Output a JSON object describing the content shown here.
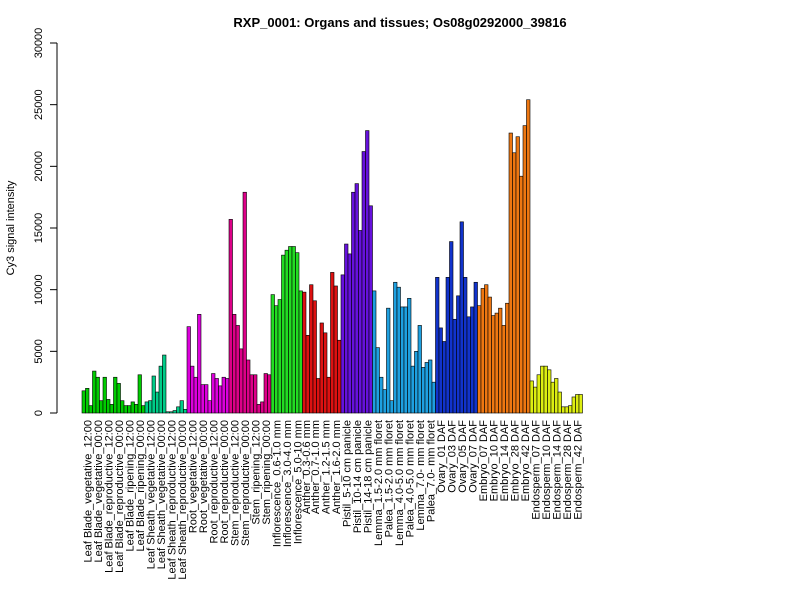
{
  "chart_data": {
    "type": "bar",
    "title": "RXP_0001: Organs and tissues; Os08g0292000_39816",
    "ylabel": "Cy3 signal intensity",
    "xlabel": "",
    "ylim": [
      0,
      30000
    ],
    "yticks": [
      0,
      5000,
      10000,
      15000,
      20000,
      25000,
      30000
    ],
    "grid": false,
    "legend": "none",
    "groups": [
      {
        "label": "Leaf Blade_vegetative_12:00",
        "color": "#00cc00",
        "values": [
          1800,
          2000,
          600
        ]
      },
      {
        "label": "Leaf Blade_vegetative_00:00",
        "color": "#00cc00",
        "values": [
          3400,
          2900,
          1000
        ]
      },
      {
        "label": "Leaf Blade_reproductive_12:00",
        "color": "#00cc00",
        "values": [
          2900,
          1100,
          700
        ]
      },
      {
        "label": "Leaf Blade_reproductive_00:00",
        "color": "#00cc00",
        "values": [
          2900,
          2400,
          1000
        ]
      },
      {
        "label": "Leaf Blade_ripening_12:00",
        "color": "#00cc00",
        "values": [
          600,
          600,
          900
        ]
      },
      {
        "label": "Leaf Blade_ripening_00:00",
        "color": "#00cc00",
        "values": [
          700,
          3100,
          600
        ]
      },
      {
        "label": "Leaf Sheath_vegetative_12:00",
        "color": "#00cc88",
        "values": [
          900,
          1000,
          3000
        ]
      },
      {
        "label": "Leaf Sheath_vegetative_00:00",
        "color": "#00cc88",
        "values": [
          1700,
          3800,
          4700
        ]
      },
      {
        "label": "Leaf Sheath_reproductive_12:00",
        "color": "#00cc88",
        "values": [
          100,
          100,
          200
        ]
      },
      {
        "label": "Leaf Sheath_reproductive_00:00",
        "color": "#00cc88",
        "values": [
          500,
          1000,
          300
        ]
      },
      {
        "label": "Root_vegetative_12:00",
        "color": "#dd00dd",
        "values": [
          7000,
          3800,
          2900
        ]
      },
      {
        "label": "Root_vegetative_00:00",
        "color": "#dd00dd",
        "values": [
          8000,
          2300,
          2300
        ]
      },
      {
        "label": "Root_reproductive_12:00",
        "color": "#dd00dd",
        "values": [
          1000,
          3200,
          2800
        ]
      },
      {
        "label": "Root_reproductive_00:00",
        "color": "#dd00dd",
        "values": [
          2200,
          2900,
          2800
        ]
      },
      {
        "label": "Stem_reproductive_12:00",
        "color": "#dd0088",
        "values": [
          15700,
          8000,
          7100
        ]
      },
      {
        "label": "Stem_reproductive_00:00",
        "color": "#dd0088",
        "values": [
          5200,
          17900,
          4300
        ]
      },
      {
        "label": "Stem_ripening_12:00",
        "color": "#dd0088",
        "values": [
          3100,
          3100,
          700
        ]
      },
      {
        "label": "Stem_ripening_00:00",
        "color": "#dd0088",
        "values": [
          900,
          3200,
          3100
        ]
      },
      {
        "label": "Inflorescence_0.6-1.0 mm",
        "color": "#22dd22",
        "values": [
          9600,
          8700,
          9200
        ]
      },
      {
        "label": "Inflorescence_3.0-4.0 mm",
        "color": "#22dd22",
        "values": [
          12800,
          13200,
          13500
        ]
      },
      {
        "label": "Inflorescence_5.0-10 mm",
        "color": "#22dd22",
        "values": [
          13500,
          13000,
          9900
        ]
      },
      {
        "label": "Anther_0.3-0.6 mm",
        "color": "#dd1111",
        "values": [
          9800,
          6300
        ]
      },
      {
        "label": "Anther_0.7-1.0 mm",
        "color": "#dd1111",
        "values": [
          10400,
          9100,
          2800
        ]
      },
      {
        "label": "Anther_1.2-1.5 mm",
        "color": "#dd1111",
        "values": [
          7300,
          6500,
          2900
        ]
      },
      {
        "label": "Anther_1.6-2.0 mm",
        "color": "#dd1111",
        "values": [
          11400,
          10300,
          5900
        ]
      },
      {
        "label": "Pistil_5-10 cm panicle",
        "color": "#6611dd",
        "values": [
          11200,
          13700,
          12900
        ]
      },
      {
        "label": "Pistil_10-14 cm panicle",
        "color": "#6611dd",
        "values": [
          17900,
          18600,
          14800
        ]
      },
      {
        "label": "Pistil_14-18 cm panicle",
        "color": "#6611dd",
        "values": [
          21200,
          22900,
          16800
        ]
      },
      {
        "label": "Lemma_1.5-2.0 mm floret",
        "color": "#1ea0e0",
        "values": [
          9900,
          5300,
          2900
        ]
      },
      {
        "label": "Palea_1.5-2.0 mm floret",
        "color": "#1ea0e0",
        "values": [
          1900,
          8500,
          1000
        ]
      },
      {
        "label": "Lemma_4.0-5.0 mm floret",
        "color": "#1ea0e0",
        "values": [
          10600,
          10200,
          8600
        ]
      },
      {
        "label": "Palea_4.0-5.0 mm floret",
        "color": "#1ea0e0",
        "values": [
          8600,
          9300,
          3800
        ]
      },
      {
        "label": "Lemma_7.0- mm floret",
        "color": "#1ea0e0",
        "values": [
          5000,
          7100,
          3700
        ]
      },
      {
        "label": "Palea_7.0- mm floret",
        "color": "#1ea0e0",
        "values": [
          4100,
          4300,
          2500
        ]
      },
      {
        "label": "Ovary_01 DAF",
        "color": "#1133cc",
        "values": [
          11000,
          6900,
          5800
        ]
      },
      {
        "label": "Ovary_03 DAF",
        "color": "#1133cc",
        "values": [
          11000,
          13900,
          7600
        ]
      },
      {
        "label": "Ovary_05 DAF",
        "color": "#1133cc",
        "values": [
          9500,
          15500,
          11000
        ]
      },
      {
        "label": "Ovary_07 DAF",
        "color": "#1133cc",
        "values": [
          7800,
          8600,
          10600
        ]
      },
      {
        "label": "Embryo_07 DAF",
        "color": "#ee7711",
        "values": [
          8700,
          10100,
          10400
        ]
      },
      {
        "label": "Embryo_10 DAF",
        "color": "#ee7711",
        "values": [
          9400,
          7900,
          8100
        ]
      },
      {
        "label": "Embryo_14 DAF",
        "color": "#ee7711",
        "values": [
          8500,
          7100,
          8900
        ]
      },
      {
        "label": "Embryo_28 DAF",
        "color": "#ee7711",
        "values": [
          22700,
          21100,
          22400
        ]
      },
      {
        "label": "Embryo_42 DAF",
        "color": "#ee7711",
        "values": [
          19200,
          23300,
          25400
        ]
      },
      {
        "label": "Endosperm_07 DAF",
        "color": "#ddee11",
        "values": [
          2600,
          2100,
          3100
        ]
      },
      {
        "label": "Endosperm_10 DAF",
        "color": "#ddee11",
        "values": [
          3800,
          3800,
          3500
        ]
      },
      {
        "label": "Endosperm_14 DAF",
        "color": "#ddee11",
        "values": [
          2500,
          2800,
          1700
        ]
      },
      {
        "label": "Endosperm_28 DAF",
        "color": "#ddee11",
        "values": [
          500,
          500,
          600
        ]
      },
      {
        "label": "Endosperm_42 DAF",
        "color": "#ddee11",
        "values": [
          1300,
          1500,
          1500
        ]
      }
    ]
  }
}
